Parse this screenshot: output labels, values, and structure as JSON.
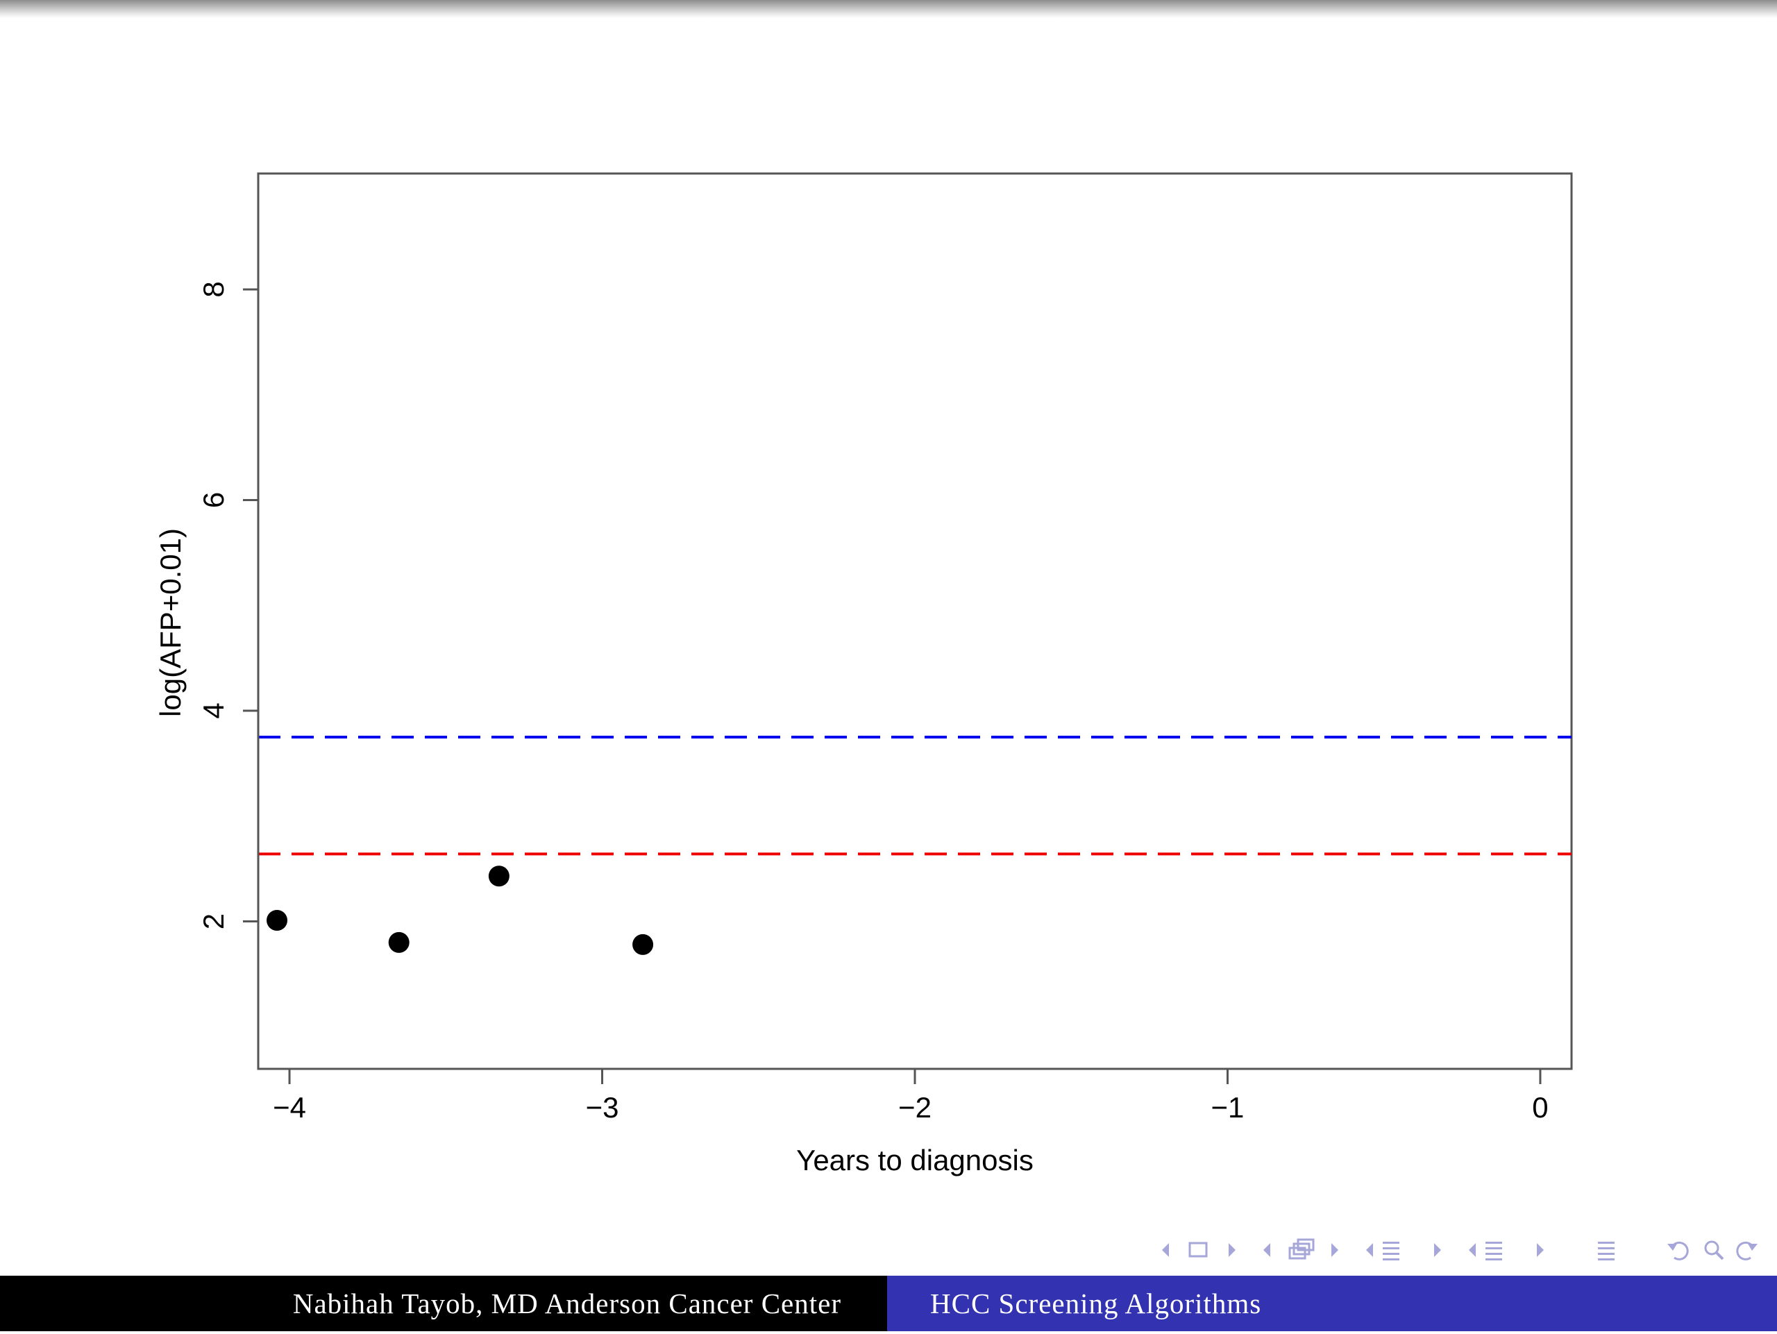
{
  "chart_data": {
    "type": "scatter",
    "xlabel": "Years to diagnosis",
    "ylabel": "log(AFP+0.01)",
    "xlim": [
      -4.1,
      0.1
    ],
    "ylim": [
      0.6,
      9.1
    ],
    "xticks": [
      -4,
      -3,
      -2,
      -1,
      0
    ],
    "xtick_labels": [
      "−4",
      "−3",
      "−2",
      "−1",
      "0"
    ],
    "yticks": [
      2,
      4,
      6,
      8
    ],
    "ytick_labels": [
      "2",
      "4",
      "6",
      "8"
    ],
    "grid": false,
    "points": [
      {
        "x": -4.04,
        "y": 2.01
      },
      {
        "x": -3.65,
        "y": 1.8
      },
      {
        "x": -3.33,
        "y": 2.43
      },
      {
        "x": -2.87,
        "y": 1.78
      }
    ],
    "hlines": [
      {
        "y": 3.75,
        "color": "#0000ee",
        "style": "dashed"
      },
      {
        "y": 2.64,
        "color": "#ee0000",
        "style": "dashed"
      }
    ],
    "point_color": "#000000"
  },
  "navigation": {
    "icons": [
      "nav-prev-arrow-icon",
      "nav-frame-icon",
      "nav-next-arrow-icon",
      "nav-prev-arrow-icon",
      "nav-subsection-icon",
      "nav-next-arrow-icon",
      "nav-prev-arrow-icon",
      "nav-section-icon",
      "nav-next-arrow-icon",
      "nav-prev-arrow-icon",
      "nav-presentation-icon",
      "nav-next-arrow-icon",
      "nav-align-icon",
      "nav-undo-icon",
      "nav-search-icon",
      "nav-redo-icon"
    ],
    "color": "#a6a6d9"
  },
  "footer": {
    "author": "Nabihah Tayob, MD Anderson Cancer Center",
    "title": "HCC Screening Algorithms",
    "left_color": "#000000",
    "right_color": "#3333b2"
  }
}
